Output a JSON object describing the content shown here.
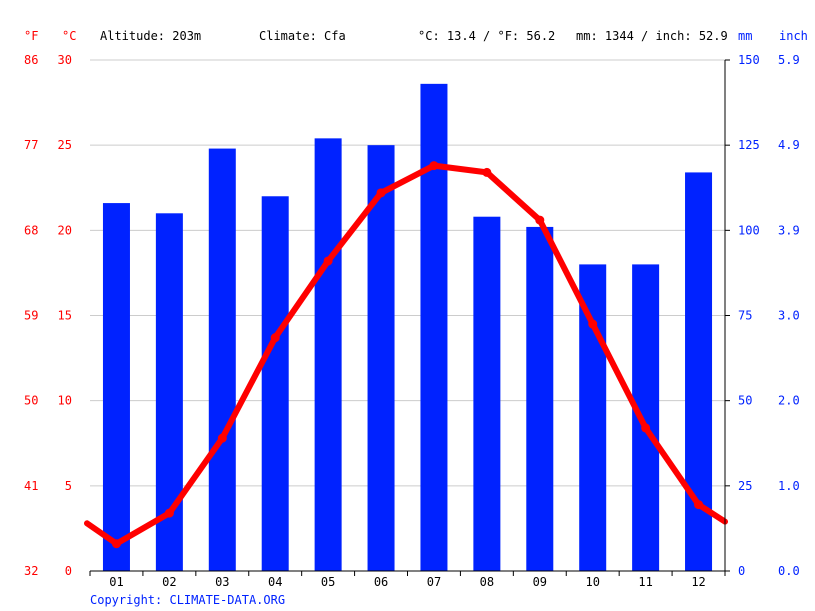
{
  "header": {
    "unit_f": "°F",
    "unit_c": "°C",
    "altitude": "Altitude: 203m",
    "climate": "Climate: Cfa",
    "avg_temp": "°C: 13.4 / °F: 56.2",
    "avg_precip": "mm: 1344 / inch: 52.9",
    "unit_mm": "mm",
    "unit_inch": "inch"
  },
  "footer": {
    "copyright": "Copyright: CLIMATE-DATA.ORG"
  },
  "colors": {
    "temperature": "#ff0000",
    "precipitation": "#0022ff",
    "grid": "#cccccc",
    "axis": "#000000"
  },
  "chart_data": {
    "type": "bar",
    "categories": [
      "01",
      "02",
      "03",
      "04",
      "05",
      "06",
      "07",
      "08",
      "09",
      "10",
      "11",
      "12"
    ],
    "series": [
      {
        "type": "bar",
        "axis": "right",
        "values": [
          108,
          105,
          124,
          110,
          127,
          125,
          143,
          104,
          101,
          90,
          90,
          117
        ]
      },
      {
        "type": "line",
        "axis": "left",
        "values": [
          1.6,
          3.4,
          7.8,
          13.7,
          18.2,
          22.2,
          23.8,
          23.4,
          20.6,
          14.5,
          8.4,
          3.9
        ],
        "edge_start": 2.8,
        "edge_end": 2.9
      }
    ],
    "y_left_celsius": {
      "ticks": [
        "0",
        "5",
        "10",
        "15",
        "20",
        "25",
        "30"
      ],
      "ylim": [
        0,
        30
      ]
    },
    "y_left_fahrenheit": {
      "ticks": [
        "32",
        "41",
        "50",
        "59",
        "68",
        "77",
        "86"
      ]
    },
    "y_right_mm": {
      "ticks": [
        "0",
        "25",
        "50",
        "75",
        "100",
        "125",
        "150"
      ],
      "ylim": [
        0,
        150
      ]
    },
    "y_right_inch": {
      "ticks": [
        "0.0",
        "1.0",
        "2.0",
        "3.0",
        "3.9",
        "4.9",
        "5.9"
      ]
    },
    "grid": true
  }
}
